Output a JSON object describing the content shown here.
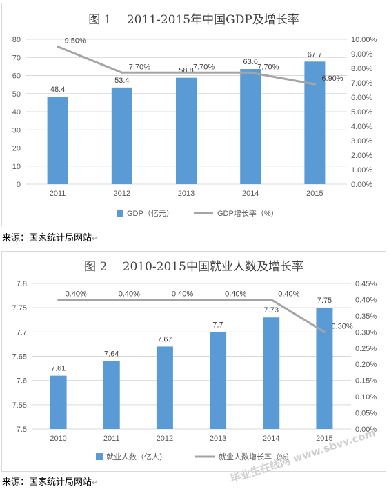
{
  "charts": [
    {
      "title": "图 1　 2011-2015年中国GDP及增长率",
      "source": "来源：国家统计局网站",
      "chart_data": {
        "type": "bar",
        "categories": [
          "2011",
          "2012",
          "2013",
          "2014",
          "2015"
        ],
        "bar_series": {
          "name": "GDP（亿元）",
          "values": [
            48.4,
            53.4,
            58.8,
            63.6,
            67.7
          ],
          "color": "#5b9bd5"
        },
        "line_series": {
          "name": "GDP增长率（%）",
          "values": [
            9.5,
            7.7,
            7.7,
            7.7,
            6.9
          ],
          "labels": [
            "9.50%",
            "7.70%",
            "7.70%",
            "7.70%",
            "6.90%"
          ],
          "color": "#a5a5a5"
        },
        "ylim_left": [
          0,
          80
        ],
        "ylim_right": [
          0,
          10
        ],
        "left_ticks": [
          "0",
          "10",
          "20",
          "30",
          "40",
          "50",
          "60",
          "70",
          "80"
        ],
        "right_ticks": [
          "0.00%",
          "1.00%",
          "2.00%",
          "3.00%",
          "4.00%",
          "5.00%",
          "6.00%",
          "7.00%",
          "8.00%",
          "9.00%",
          "10.00%"
        ],
        "bar_labels": [
          "48.4",
          "53.4",
          "58.8",
          "63.6",
          "67.7"
        ],
        "grid": true,
        "legend_position": "bottom"
      }
    },
    {
      "title": "图 2　 2010-2015中国就业人数及增长率",
      "source": "来源：国家统计局网站",
      "chart_data": {
        "type": "bar",
        "categories": [
          "2010",
          "2011",
          "2012",
          "2013",
          "2014",
          "2015"
        ],
        "bar_series": {
          "name": "就业人数（亿人）",
          "values": [
            7.61,
            7.64,
            7.67,
            7.7,
            7.73,
            7.75
          ],
          "color": "#5b9bd5"
        },
        "line_series": {
          "name": "就业人数增长率（%）",
          "values": [
            0.4,
            0.4,
            0.4,
            0.4,
            0.4,
            0.3
          ],
          "labels": [
            "0.40%",
            "0.40%",
            "0.40%",
            "0.40%",
            "0.40%",
            "0.30%"
          ],
          "color": "#a5a5a5"
        },
        "ylim_left": [
          7.5,
          7.8
        ],
        "ylim_right": [
          0,
          0.45
        ],
        "left_ticks": [
          "7.5",
          "7.55",
          "7.6",
          "7.65",
          "7.7",
          "7.75",
          "7.8"
        ],
        "right_ticks": [
          "0.00%",
          "0.05%",
          "0.10%",
          "0.15%",
          "0.20%",
          "0.25%",
          "0.30%",
          "0.35%",
          "0.40%",
          "0.45%"
        ],
        "bar_labels": [
          "7.61",
          "7.64",
          "7.67",
          "7.7",
          "7.73",
          "7.75"
        ],
        "grid": true,
        "legend_position": "bottom"
      }
    }
  ],
  "watermark": "毕业生在线网 www.sbvv.com"
}
